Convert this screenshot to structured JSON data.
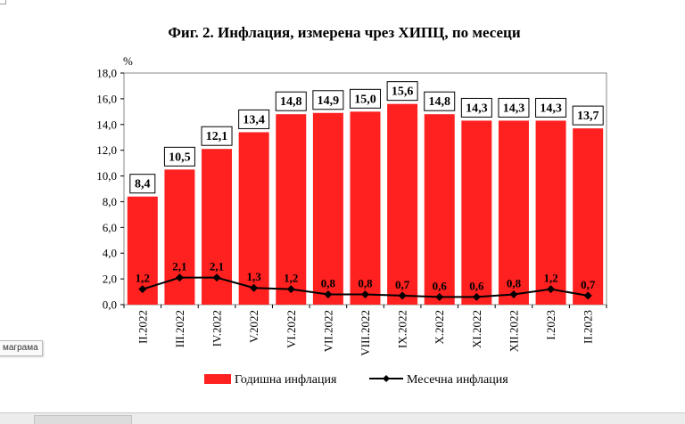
{
  "tooltip": {
    "text": "маграма"
  },
  "chart_data": {
    "type": "bar",
    "title": "Фиг. 2. Инфлация, измерена чрез ХИПЦ, по месеци",
    "ylabel": "%",
    "ylim": [
      0,
      18
    ],
    "yticks": [
      "0,0",
      "2,0",
      "4,0",
      "6,0",
      "8,0",
      "10,0",
      "12,0",
      "14,0",
      "16,0",
      "18,0"
    ],
    "grid": false,
    "legend_position": "bottom",
    "categories": [
      "II.2022",
      "III.2022",
      "IV.2022",
      "V.2022",
      "VI.2022",
      "VII.2022",
      "VIII.2022",
      "IX.2022",
      "X.2022",
      "XI.2022",
      "XII.2022",
      "I.2023",
      "II.2023"
    ],
    "series": [
      {
        "name": "Годишна инфлация",
        "type": "bar",
        "color": "#ff2020",
        "values": [
          8.4,
          10.5,
          12.1,
          13.4,
          14.8,
          14.9,
          15.0,
          15.6,
          14.8,
          14.3,
          14.3,
          14.3,
          13.7
        ],
        "labels": [
          "8,4",
          "10,5",
          "12,1",
          "13,4",
          "14,8",
          "14,9",
          "15,0",
          "15,6",
          "14,8",
          "14,3",
          "14,3",
          "14,3",
          "13,7"
        ]
      },
      {
        "name": "Месечна инфлация",
        "type": "line",
        "color": "#000000",
        "values": [
          1.2,
          2.1,
          2.1,
          1.3,
          1.2,
          0.8,
          0.8,
          0.7,
          0.6,
          0.6,
          0.8,
          1.2,
          0.7
        ],
        "labels": [
          "1,2",
          "2,1",
          "2,1",
          "1,3",
          "1,2",
          "0,8",
          "0,8",
          "0,7",
          "0,6",
          "0,6",
          "0,8",
          "1,2",
          "0,7"
        ]
      }
    ]
  }
}
